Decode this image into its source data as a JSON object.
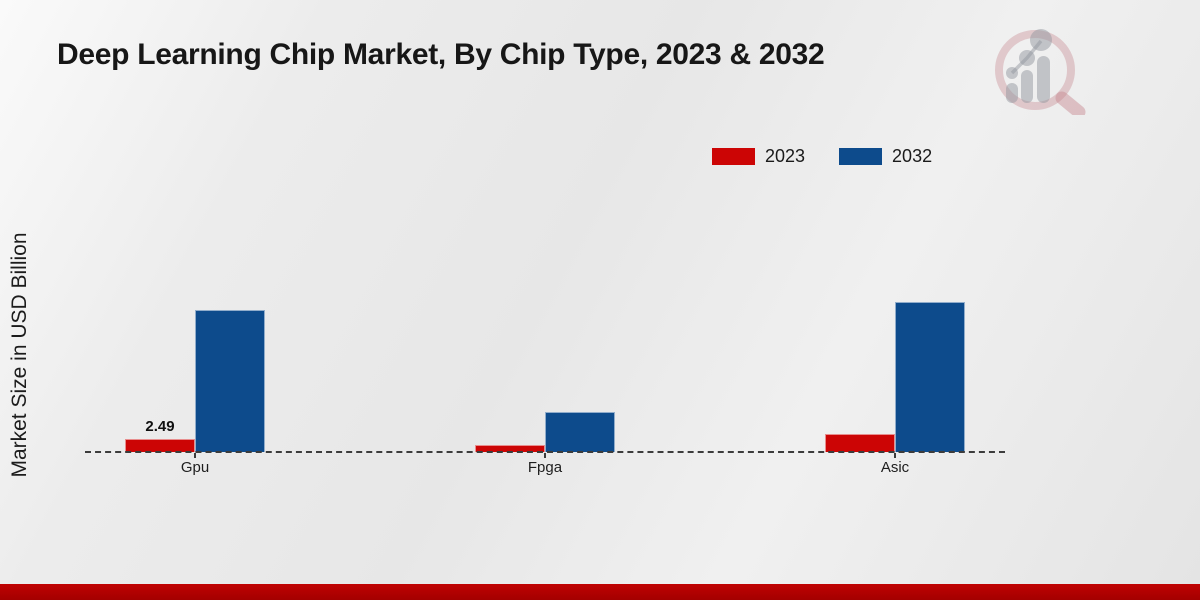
{
  "header": {
    "title": "Deep Learning Chip Market, By Chip Type, 2023 & 2032"
  },
  "axes": {
    "ylabel": "Market Size in USD Billion"
  },
  "legend": {
    "items": [
      {
        "label": "2023",
        "color": "#cc0505"
      },
      {
        "label": "2032",
        "color": "#0d4b8c"
      }
    ]
  },
  "chart_data": {
    "type": "bar",
    "title": "Deep Learning Chip Market, By Chip Type, 2023 & 2032",
    "ylabel": "Market Size in USD Billion",
    "xlabel": "",
    "categories": [
      "Gpu",
      "Fpga",
      "Asic"
    ],
    "series": [
      {
        "name": "2023",
        "color": "#cc0505",
        "values": [
          2.49,
          1.3,
          3.4
        ]
      },
      {
        "name": "2032",
        "color": "#0d4b8c",
        "values": [
          26.2,
          7.4,
          27.7
        ]
      }
    ],
    "data_labels": [
      {
        "category": "Gpu",
        "series": "2023",
        "text": "2.49"
      }
    ],
    "ylim": [
      0,
      30
    ],
    "grid": false,
    "legend_position": "top-right",
    "baseline_style": "dashed"
  },
  "watermark": {
    "name": "market-research-future-logo",
    "ring_color": "rgba(197,134,142,0.38)",
    "glyph_color": "rgba(148,152,160,0.50)"
  },
  "footer": {
    "band_color_top": "#c00202",
    "band_color_bottom": "#a30000"
  }
}
